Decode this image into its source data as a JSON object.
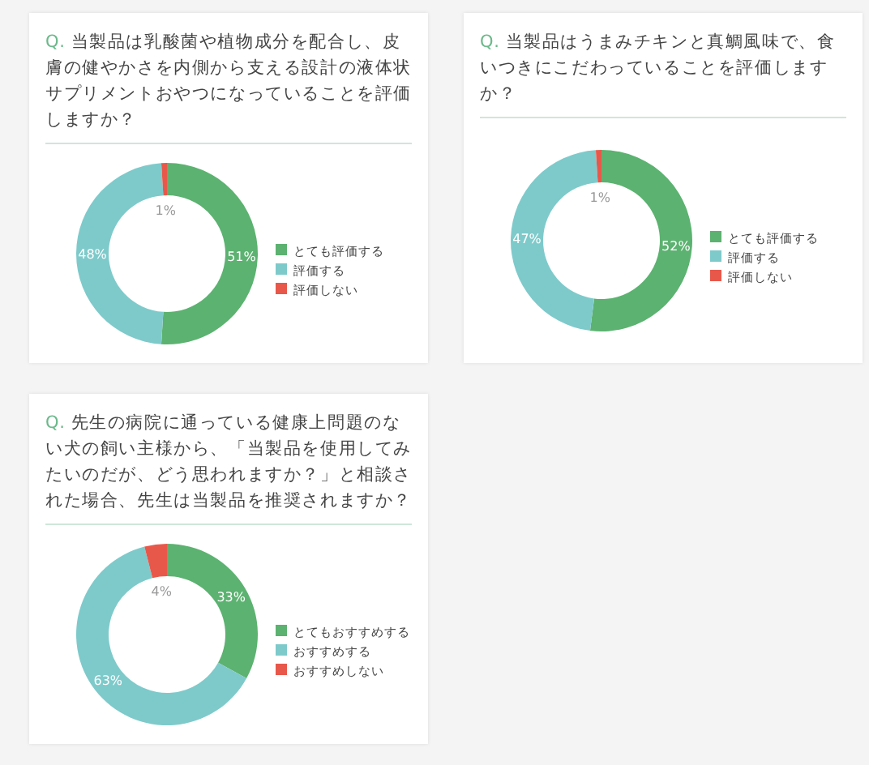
{
  "chart_data": [
    {
      "type": "donut",
      "title": "Q. 当製品は乳酸菌や植物成分を配合し、皮膚の健やかさを内側から支える設計の液体状サプリメントおやつになっていることを評価しますか？",
      "categories": [
        "とても評価する",
        "評価する",
        "評価しない"
      ],
      "values": [
        51,
        48,
        1
      ],
      "value_labels": [
        "51%",
        "48%",
        "1%"
      ],
      "colors": [
        "#5cb270",
        "#7ecacb",
        "#e8584a"
      ],
      "legend": "right"
    },
    {
      "type": "donut",
      "title": "Q. 当製品はうまみチキンと真鯛風味で、食いつきにこだわっていることを評価しますか？",
      "categories": [
        "とても評価する",
        "評価する",
        "評価しない"
      ],
      "values": [
        52,
        47,
        1
      ],
      "value_labels": [
        "52%",
        "47%",
        "1%"
      ],
      "colors": [
        "#5cb270",
        "#7ecacb",
        "#e8584a"
      ],
      "legend": "right"
    },
    {
      "type": "donut",
      "title": "Q. 先生の病院に通っている健康上問題のない犬の飼い主様から、「当製品を使用してみたいのだが、どう思われますか？」と相談された場合、先生は当製品を推奨されますか？",
      "categories": [
        "とてもおすすめする",
        "おすすめする",
        "おすすめしない"
      ],
      "values": [
        33,
        63,
        4
      ],
      "value_labels": [
        "33%",
        "63%",
        "4%"
      ],
      "colors": [
        "#5cb270",
        "#7ecacb",
        "#e8584a"
      ],
      "legend": "right"
    }
  ]
}
